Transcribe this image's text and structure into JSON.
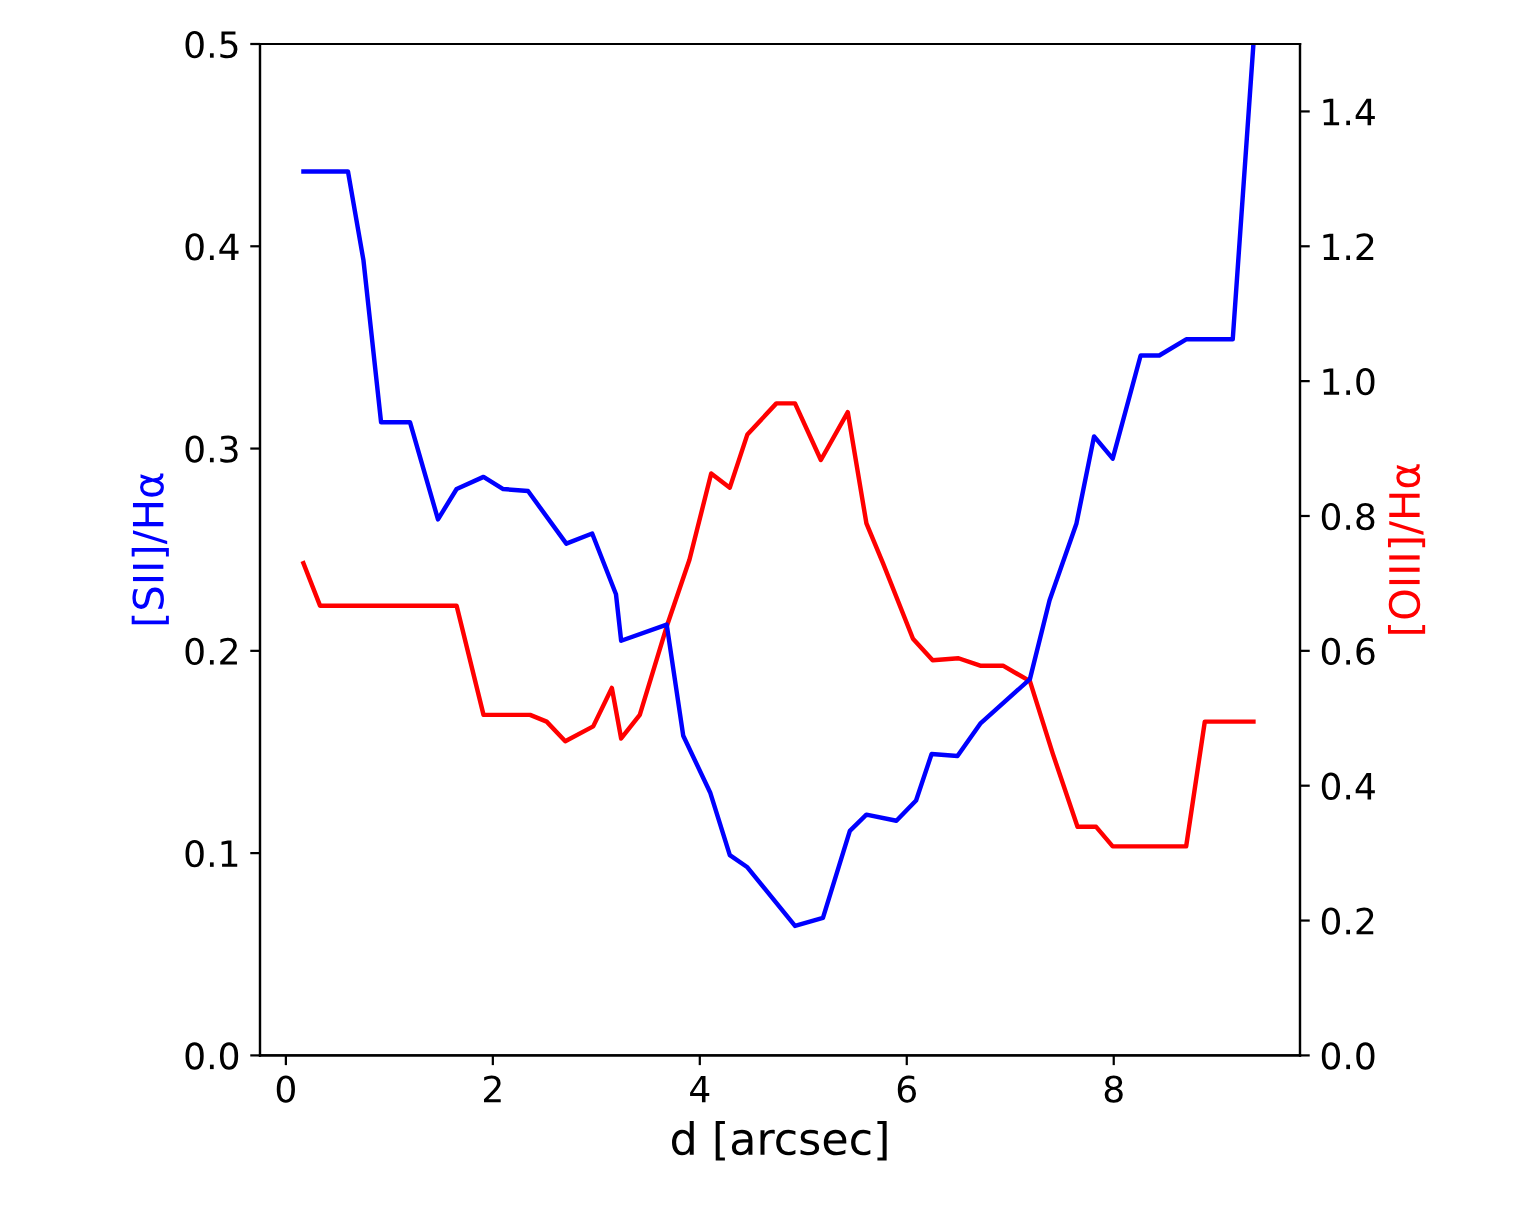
{
  "chart_data": {
    "type": "line",
    "xlabel": "d [arcsec]",
    "ylabel": "[SII]/Hα",
    "y2label": "[OIII]/Hα",
    "xlim": [
      -0.25,
      9.8
    ],
    "xticks": [
      0,
      2,
      4,
      6,
      8
    ],
    "ylim": [
      0,
      0.5
    ],
    "yticks": [
      {
        "value": 0,
        "label": "0.0"
      },
      0.1,
      0.2,
      0.3,
      0.4,
      0.5
    ],
    "y2lim": [
      0,
      1.5
    ],
    "y2ticks": [
      {
        "value": 0,
        "label": "0.0"
      },
      0.2,
      0.4,
      0.6,
      0.8,
      {
        "value": 1,
        "label": "1.0"
      },
      1.2,
      1.4
    ],
    "grid": false,
    "legend": false,
    "line_style": "solid",
    "marker": "none",
    "series": [
      {
        "color": "#0000ff",
        "x": [
          0.17,
          0.6,
          0.75,
          0.92,
          1.2,
          1.47,
          1.65,
          1.91,
          2.1,
          2.34,
          2.71,
          2.96,
          3.19,
          3.24,
          3.68,
          3.84,
          4.1,
          4.29,
          4.46,
          4.92,
          5.19,
          5.45,
          5.61,
          5.9,
          6.09,
          6.24,
          6.49,
          6.71,
          7.19,
          7.38,
          7.64,
          7.81,
          7.99,
          8.26,
          8.44,
          8.7,
          9.15,
          9.35
        ],
        "values": [
          0.437,
          0.437,
          0.393,
          0.313,
          0.313,
          0.265,
          0.28,
          0.286,
          0.28,
          0.279,
          0.253,
          0.258,
          0.228,
          0.205,
          0.213,
          0.158,
          0.13,
          0.099,
          0.093,
          0.064,
          0.068,
          0.111,
          0.119,
          0.116,
          0.126,
          0.149,
          0.148,
          0.164,
          0.186,
          0.225,
          0.263,
          0.306,
          0.295,
          0.346,
          0.346,
          0.354,
          0.354,
          0.5
        ]
      },
      {
        "color": "#ff0000",
        "axis": "y2",
        "x": [
          0.17,
          0.33,
          1.65,
          1.91,
          2.36,
          2.52,
          2.7,
          2.97,
          3.15,
          3.24,
          3.42,
          3.68,
          3.9,
          4.11,
          4.29,
          4.46,
          4.74,
          4.92,
          5.17,
          5.43,
          5.61,
          5.77,
          6.06,
          6.25,
          6.5,
          6.71,
          6.93,
          7.19,
          7.41,
          7.65,
          7.83,
          7.99,
          8.7,
          8.88,
          9.35
        ],
        "values": [
          0.73,
          0.667,
          0.667,
          0.505,
          0.505,
          0.495,
          0.466,
          0.488,
          0.545,
          0.47,
          0.505,
          0.636,
          0.735,
          0.863,
          0.842,
          0.921,
          0.967,
          0.967,
          0.883,
          0.954,
          0.789,
          0.73,
          0.618,
          0.586,
          0.589,
          0.578,
          0.578,
          0.555,
          0.448,
          0.339,
          0.339,
          0.31,
          0.31,
          0.495,
          0.495
        ]
      }
    ]
  }
}
